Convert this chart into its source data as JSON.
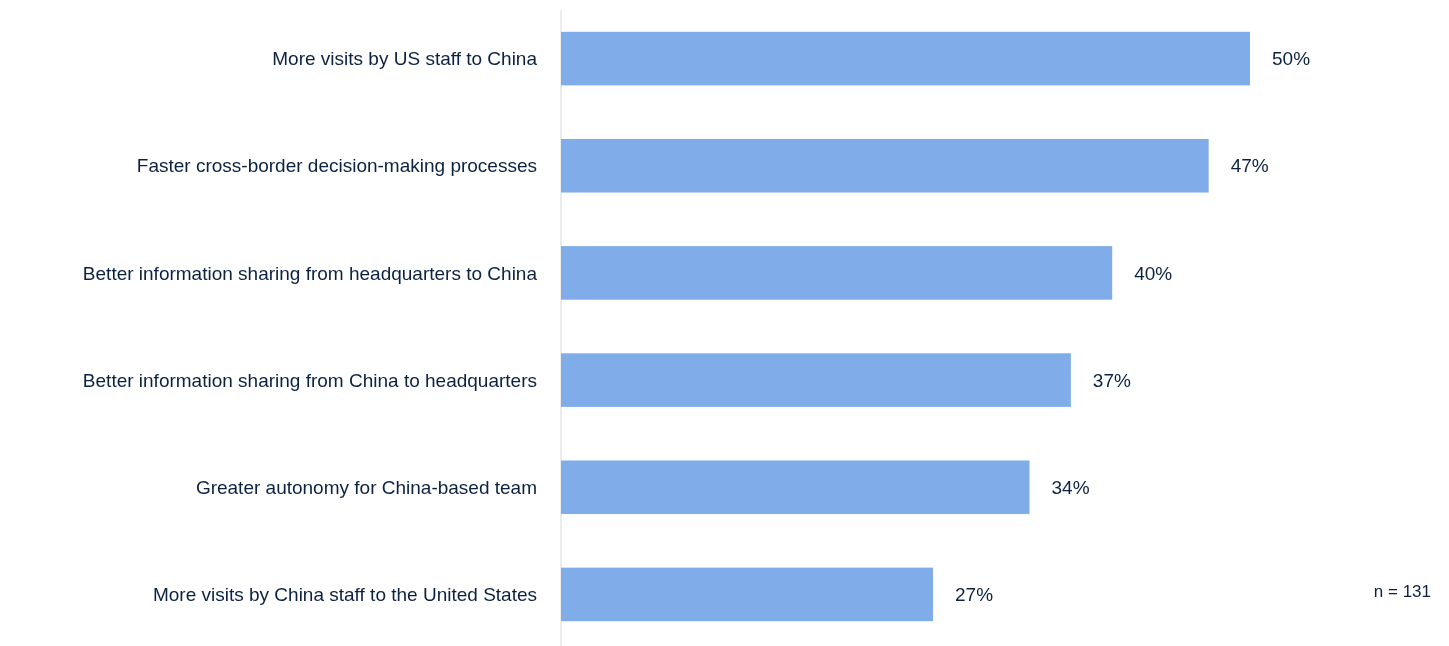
{
  "chart_data": {
    "type": "bar",
    "orientation": "horizontal",
    "categories": [
      "More visits by US staff to China",
      "Faster cross-border decision-making processes",
      "Better information sharing from headquarters to China",
      "Better information sharing from China to headquarters",
      "Greater autonomy for China-based team",
      "More visits by China staff to the United States"
    ],
    "values": [
      50,
      47,
      40,
      37,
      34,
      27
    ],
    "value_labels": [
      "50%",
      "47%",
      "40%",
      "37%",
      "34%",
      "27%"
    ],
    "color": "#80acea",
    "annotations": [
      "n = 131"
    ]
  }
}
